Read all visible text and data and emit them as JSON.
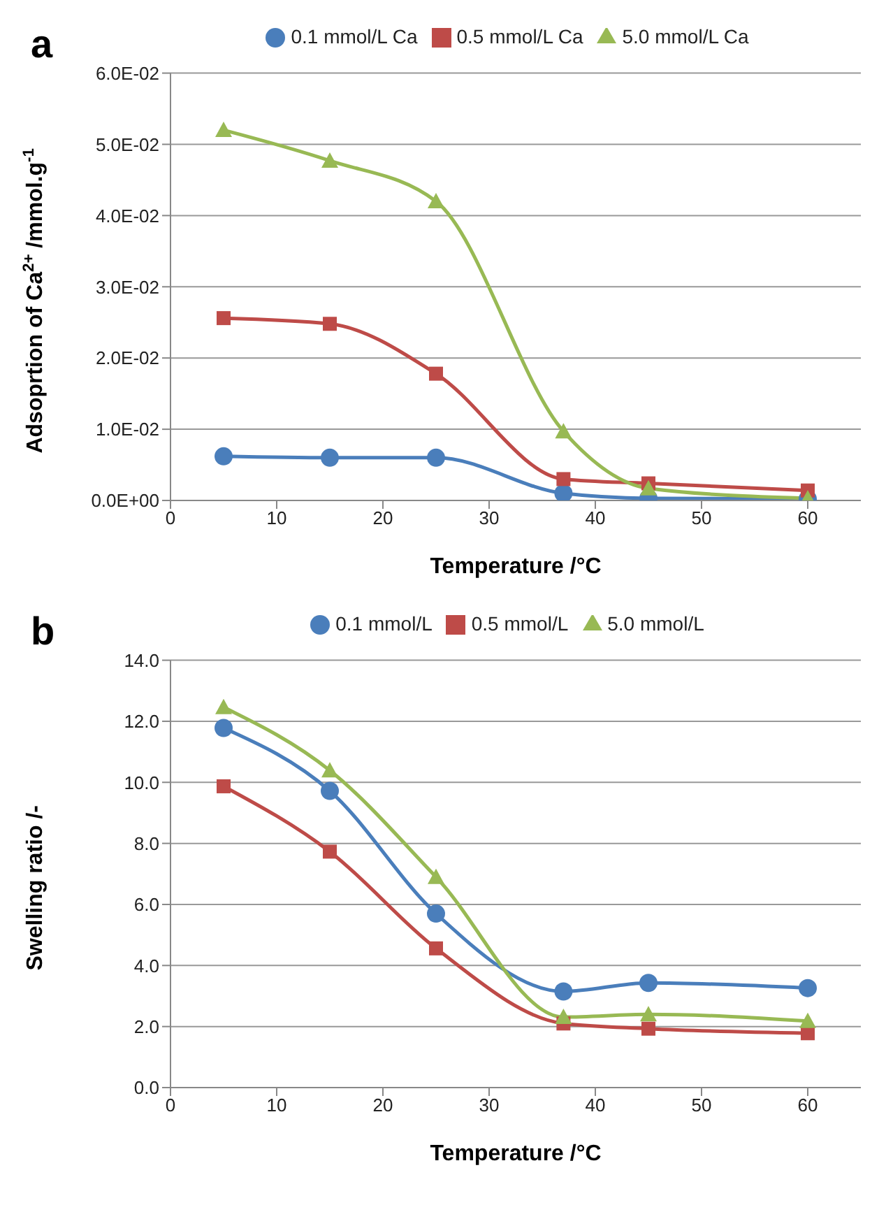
{
  "chart_data": [
    {
      "type": "line",
      "title": "a",
      "xlabel": "Temperature /°C",
      "ylabel": "Adsoprtion of Ca$^{2+}$ /mmol.g$^{-1}$",
      "x": [
        5,
        15,
        25,
        37,
        45,
        60
      ],
      "xlim": [
        0,
        65
      ],
      "xticks": [
        0,
        10,
        20,
        30,
        40,
        50,
        60
      ],
      "ylim": [
        0,
        0.06
      ],
      "yticks": [
        {
          "value": 0,
          "label": "0.0E+00"
        },
        {
          "value": 0.01,
          "label": "1.0E-02"
        },
        {
          "value": 0.02,
          "label": "2.0E-02"
        },
        {
          "value": 0.03,
          "label": "3.0E-02"
        },
        {
          "value": 0.04,
          "label": "4.0E-02"
        },
        {
          "value": 0.05,
          "label": "5.0E-02"
        },
        {
          "value": 0.06,
          "label": "6.0E-02"
        }
      ],
      "grid": "y",
      "legend": "top",
      "line_style": "solid",
      "series": [
        {
          "name": "0.1 mmol/L Ca",
          "color": "#4a7ebb",
          "marker": "circle",
          "values": [
            0.0062,
            0.006,
            0.006,
            0.001,
            0.0003,
            0.0002
          ]
        },
        {
          "name": "0.5 mmol/L Ca",
          "color": "#be4b48",
          "marker": "square",
          "values": [
            0.0256,
            0.0248,
            0.0178,
            0.003,
            0.0024,
            0.0014
          ]
        },
        {
          "name": "5.0 mmol/L Ca",
          "color": "#98b954",
          "marker": "triangle",
          "values": [
            0.052,
            0.0477,
            0.042,
            0.0097,
            0.0017,
            0.0003
          ]
        }
      ]
    },
    {
      "type": "line",
      "title": "b",
      "xlabel": "Temperature /°C",
      "ylabel": "Swelling ratio /-",
      "x": [
        5,
        15,
        25,
        37,
        45,
        60
      ],
      "xlim": [
        0,
        65
      ],
      "xticks": [
        0,
        10,
        20,
        30,
        40,
        50,
        60
      ],
      "ylim": [
        0,
        14
      ],
      "yticks": [
        {
          "value": 0,
          "label": "0.0"
        },
        {
          "value": 2,
          "label": "2.0"
        },
        {
          "value": 4,
          "label": "4.0"
        },
        {
          "value": 6,
          "label": "6.0"
        },
        {
          "value": 8,
          "label": "8.0"
        },
        {
          "value": 10,
          "label": "10.0"
        },
        {
          "value": 12,
          "label": "12.0"
        },
        {
          "value": 14,
          "label": "14.0"
        }
      ],
      "grid": "y",
      "legend": "top",
      "line_style": "solid",
      "series": [
        {
          "name": "0.1 mmol/L",
          "color": "#4a7ebb",
          "marker": "circle",
          "values": [
            11.78,
            9.72,
            5.7,
            3.15,
            3.43,
            3.26
          ]
        },
        {
          "name": "0.5 mmol/L",
          "color": "#be4b48",
          "marker": "square",
          "values": [
            9.87,
            7.73,
            4.56,
            2.1,
            1.93,
            1.78
          ]
        },
        {
          "name": "5.0 mmol/L",
          "color": "#98b954",
          "marker": "triangle",
          "values": [
            12.46,
            10.39,
            6.9,
            2.31,
            2.4,
            2.18
          ]
        }
      ]
    }
  ]
}
